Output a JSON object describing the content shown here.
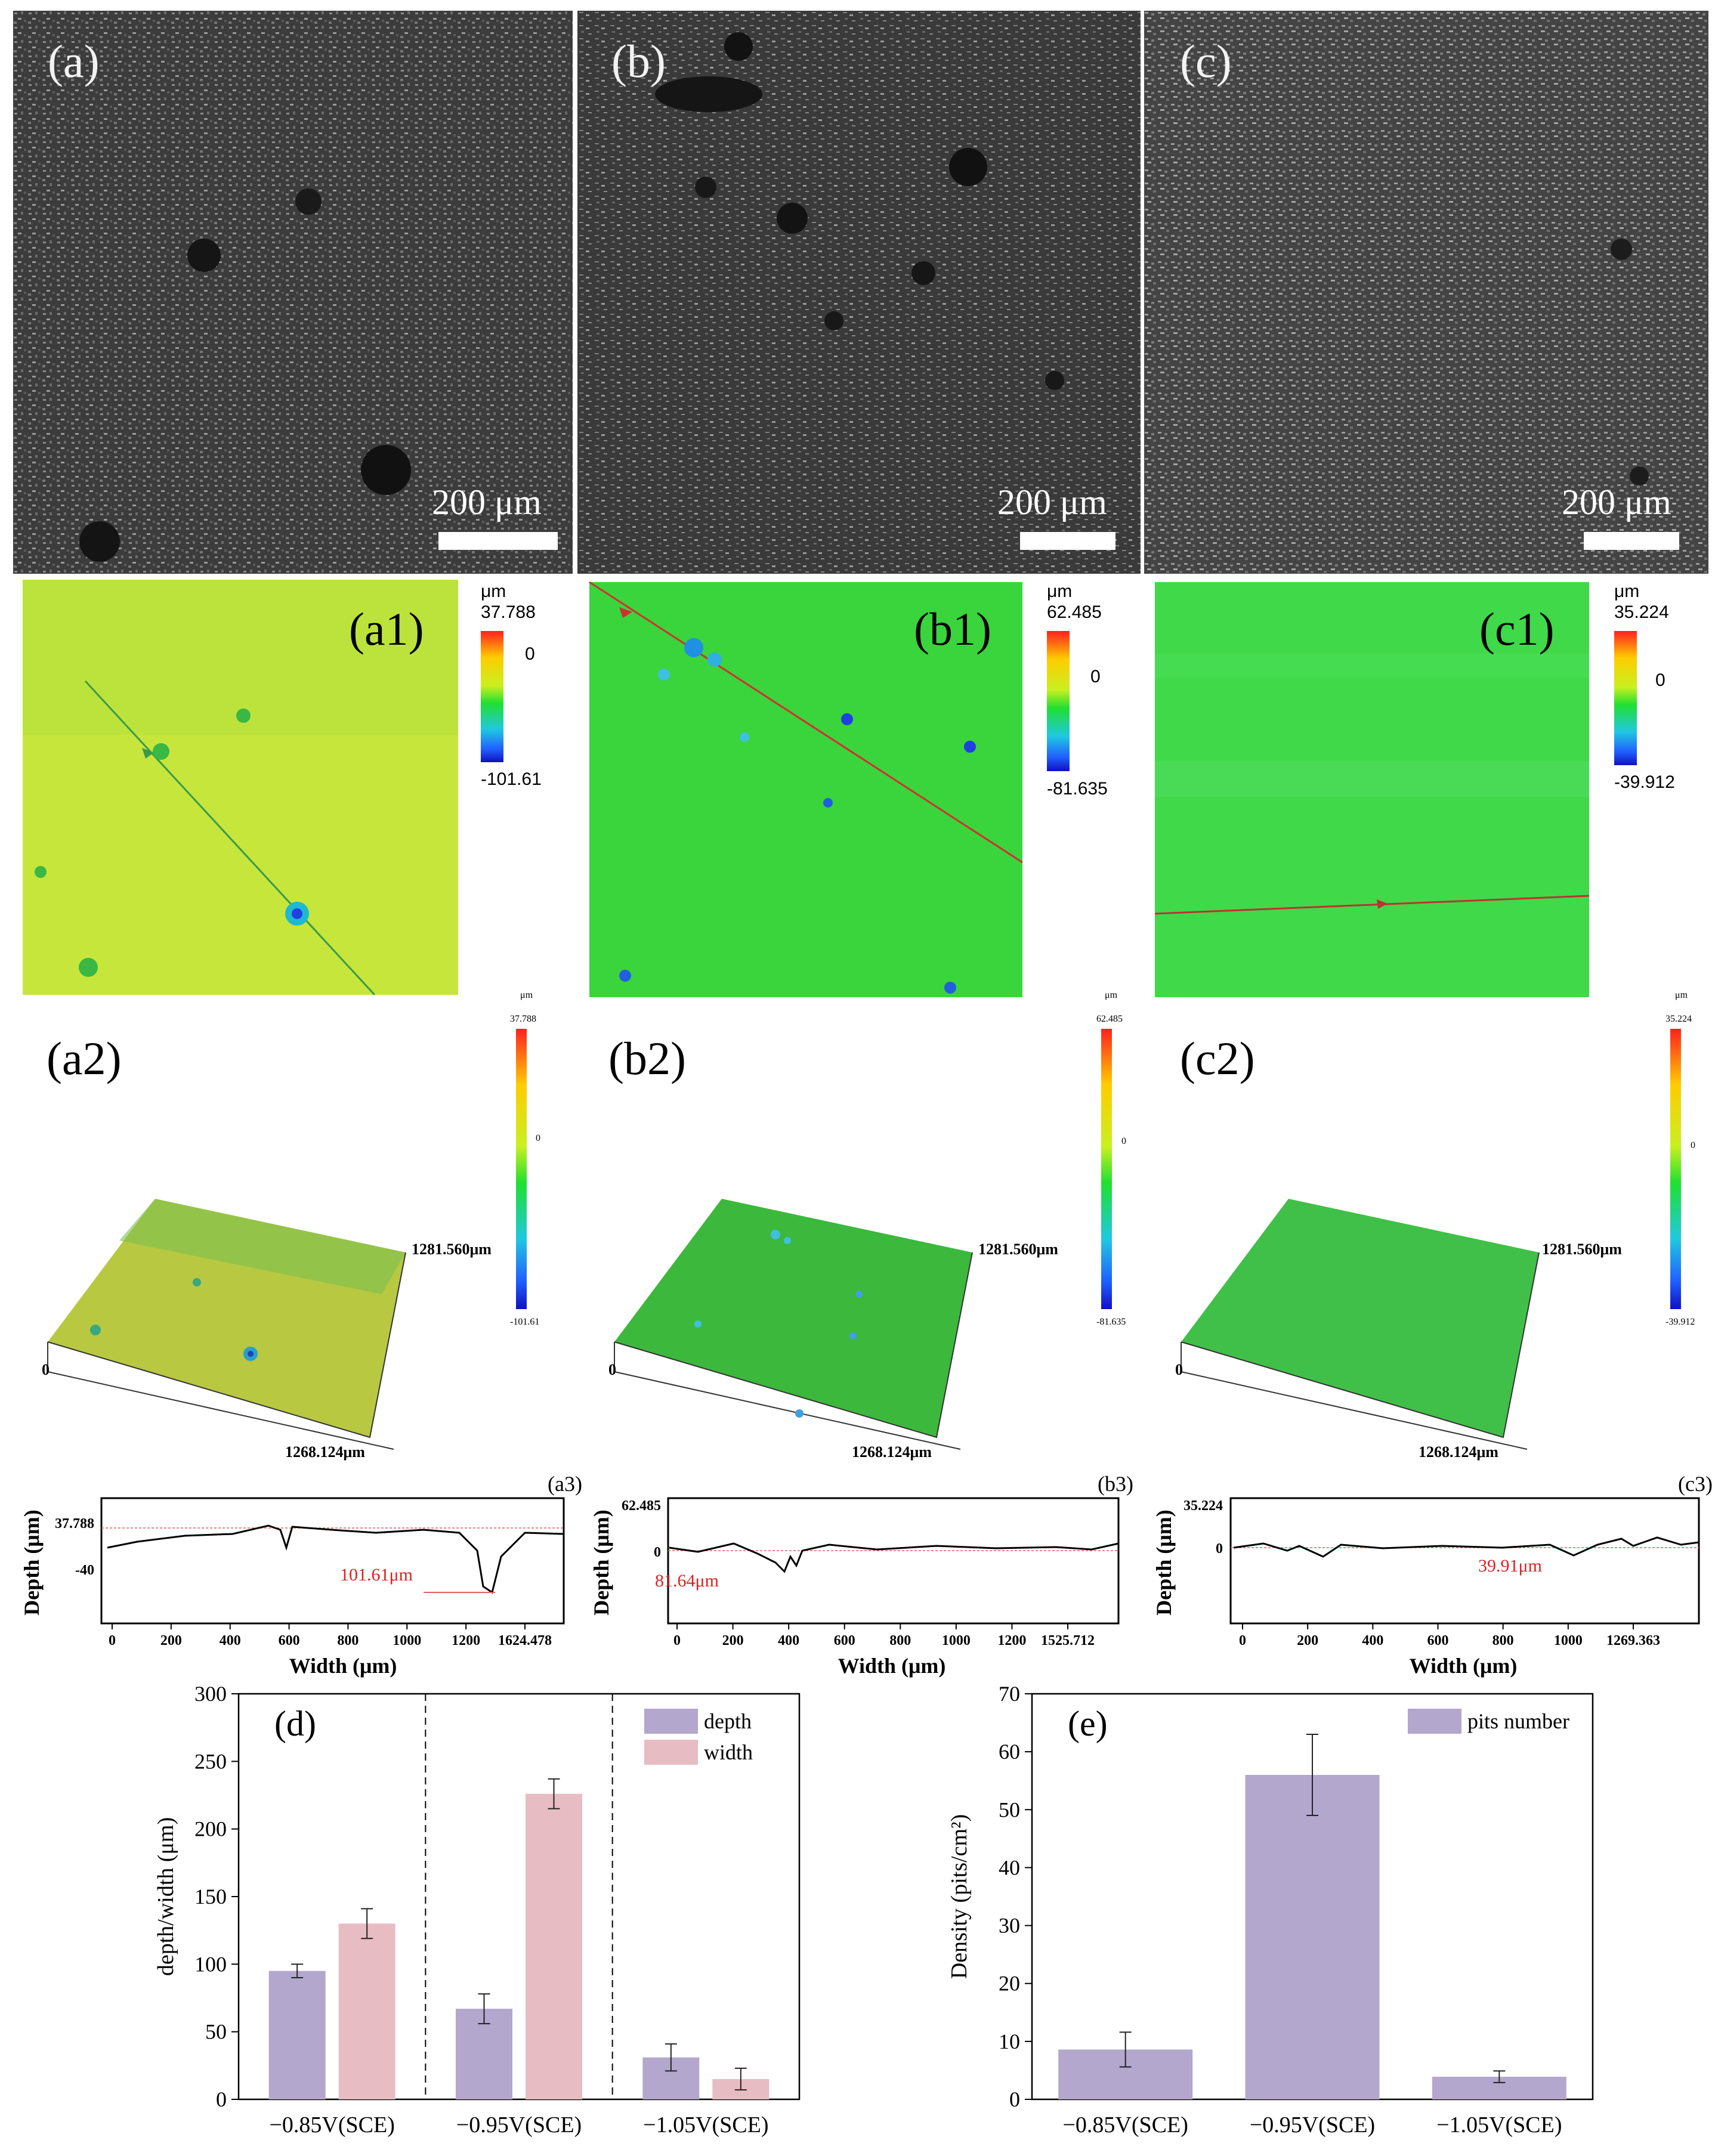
{
  "panels": {
    "a": {
      "label": "(a)",
      "scale": "200 μm"
    },
    "b": {
      "label": "(b)",
      "scale": "200 μm"
    },
    "c": {
      "label": "(c)",
      "scale": "200 μm"
    },
    "a1": {
      "label": "(a1)",
      "unit": "μm",
      "max": "37.788",
      "zero": "0",
      "min": "-101.61",
      "map_color": "#c6e63c"
    },
    "b1": {
      "label": "(b1)",
      "unit": "μm",
      "max": "62.485",
      "zero": "0",
      "min": "-81.635",
      "map_color": "#3ad43c"
    },
    "c1": {
      "label": "(c1)",
      "unit": "μm",
      "max": "35.224",
      "zero": "0",
      "min": "-39.912",
      "map_color": "#3fd94a"
    },
    "a2": {
      "label": "(a2)",
      "unit": "μm",
      "max": "37.788",
      "zero": "0",
      "min": "-101.61",
      "dim_y": "1281.560μm",
      "dim_x": "1268.124μm",
      "origin": "0"
    },
    "b2": {
      "label": "(b2)",
      "unit": "μm",
      "max": "62.485",
      "zero": "0",
      "min": "-81.635",
      "dim_y": "1281.560μm",
      "dim_x": "1268.124μm",
      "origin": "0"
    },
    "c2": {
      "label": "(c2)",
      "unit": "μm",
      "max": "35.224",
      "zero": "0",
      "min": "-39.912",
      "dim_y": "1281.560μm",
      "dim_x": "1268.124μm",
      "origin": "0"
    }
  },
  "profiles": {
    "a3": {
      "label": "(a3)",
      "ylabel": "Depth (μm)",
      "xlabel": "Width (μm)",
      "ytick_top": "37.788",
      "ytick_mid": "-40",
      "annotation": "101.61μm",
      "xticks": [
        "0",
        "200",
        "400",
        "600",
        "800",
        "1000",
        "1200",
        "1624.478"
      ]
    },
    "b3": {
      "label": "(b3)",
      "ylabel": "Depth (μm)",
      "xlabel": "Width (μm)",
      "ytick_top": "62.485",
      "ytick_mid": "0",
      "annotation": "81.64μm",
      "xticks": [
        "0",
        "200",
        "400",
        "600",
        "800",
        "1000",
        "1200",
        "1525.712"
      ]
    },
    "c3": {
      "label": "(c3)",
      "ylabel": "Depth (μm)",
      "xlabel": "Width (μm)",
      "ytick_top": "35.224",
      "ytick_mid": "0",
      "annotation": "39.91μm",
      "xticks": [
        "0",
        "200",
        "400",
        "600",
        "800",
        "1000",
        "1269.363"
      ]
    }
  },
  "chart_data": [
    {
      "id": "d",
      "label": "(d)",
      "type": "bar",
      "ylabel": "depth/width (μm)",
      "categories": [
        "−0.85V(SCE)",
        "−0.95V(SCE)",
        "−1.05V(SCE)"
      ],
      "ylim": [
        0,
        300
      ],
      "yticks": [
        "0",
        "50",
        "100",
        "150",
        "200",
        "250",
        "300"
      ],
      "legend_position": "top-right",
      "series": [
        {
          "name": "depth",
          "color": "#b3a7cd",
          "values": [
            95,
            67,
            31
          ],
          "errors": [
            5,
            11,
            10
          ]
        },
        {
          "name": "width",
          "color": "#e8bcc3",
          "values": [
            130,
            226,
            15
          ],
          "errors": [
            11,
            11,
            8
          ]
        }
      ]
    },
    {
      "id": "e",
      "label": "(e)",
      "type": "bar",
      "ylabel": "Density (pits/cm²)",
      "categories": [
        "−0.85V(SCE)",
        "−0.95V(SCE)",
        "−1.05V(SCE)"
      ],
      "ylim": [
        0,
        70
      ],
      "yticks": [
        "0",
        "10",
        "20",
        "30",
        "40",
        "50",
        "60",
        "70"
      ],
      "legend_position": "top-right",
      "series": [
        {
          "name": "pits number",
          "color": "#b3a7cd",
          "values": [
            8.6,
            56,
            3.9
          ],
          "errors": [
            3.0,
            7.0,
            1.0
          ]
        }
      ]
    }
  ]
}
